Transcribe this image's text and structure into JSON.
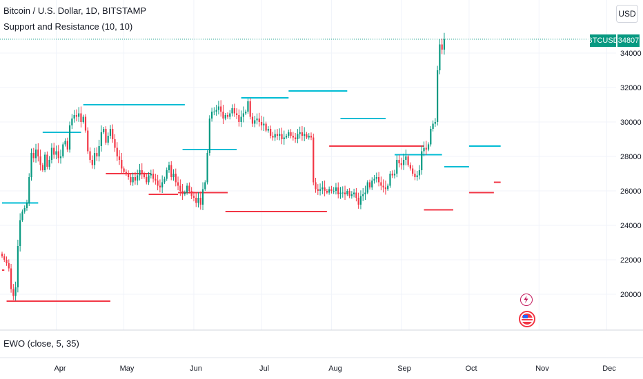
{
  "header": {
    "title": "Bitcoin / U.S. Dollar, 1D, BITSTAMP",
    "indicator": "Support and Resistance (10, 10)",
    "currency": "USD"
  },
  "price_axis": {
    "symbol_label": "BTCUSD",
    "last_price": "34807",
    "ticks": [
      "34000",
      "32000",
      "30000",
      "28000",
      "26000",
      "24000",
      "22000",
      "20000"
    ]
  },
  "time_axis": {
    "ticks": [
      "Apr",
      "May",
      "Jun",
      "Jul",
      "Aug",
      "Sep",
      "Oct",
      "Nov",
      "Dec"
    ]
  },
  "sub_pane": {
    "label": "EWO (close, 5, 35)"
  },
  "events": {
    "flash_icon": "lightning-icon",
    "flag_icon": "us-flag-icon"
  },
  "colors": {
    "up": "#089981",
    "down": "#f23645",
    "resistance": "#00bcd4",
    "support": "#f23645"
  },
  "chart_data": {
    "type": "candlestick",
    "symbol": "BTCUSD",
    "ylim": [
      18500,
      35500
    ],
    "start_date": "2023-03-08",
    "closes": [
      22200,
      22000,
      21800,
      21500,
      20300,
      19900,
      20400,
      22800,
      24300,
      24800,
      25000,
      25300,
      26800,
      28200,
      27900,
      28400,
      28000,
      27500,
      27200,
      28100,
      27400,
      27800,
      28500,
      28100,
      28300,
      27900,
      28000,
      28700,
      28900,
      28400,
      29800,
      30200,
      30400,
      30300,
      30500,
      30000,
      30300,
      29500,
      28300,
      27800,
      27500,
      28200,
      28000,
      28600,
      29400,
      29600,
      28800,
      29200,
      29600,
      29000,
      28500,
      28000,
      27800,
      27300,
      27100,
      27000,
      26800,
      26500,
      26800,
      26600,
      26900,
      27200,
      27000,
      26800,
      26500,
      26900,
      27000,
      26700,
      26600,
      26300,
      26200,
      26500,
      26700,
      27200,
      27500,
      26800,
      27000,
      26500,
      26300,
      26000,
      25800,
      25900,
      26300,
      26000,
      25700,
      25600,
      25300,
      25600,
      25200,
      26100,
      26500,
      28200,
      30200,
      30600,
      30600,
      30700,
      30900,
      30600,
      30200,
      30400,
      30300,
      30500,
      30800,
      30500,
      30400,
      30000,
      30300,
      30500,
      30600,
      31200,
      30300,
      29900,
      30100,
      30200,
      30000,
      29800,
      29900,
      29500,
      29600,
      29200,
      29100,
      29300,
      29200,
      29300,
      29000,
      29100,
      29200,
      29400,
      29200,
      29100,
      29000,
      29300,
      29400,
      29200,
      29300,
      29100,
      29200,
      29100,
      26500,
      26100,
      26000,
      26100,
      26200,
      26000,
      25900,
      26100,
      26000,
      26000,
      26200,
      25800,
      25900,
      25900,
      25800,
      26000,
      25700,
      25800,
      25900,
      25600,
      25200,
      25700,
      25800,
      25900,
      26500,
      26200,
      26600,
      26700,
      26800,
      26500,
      26300,
      26200,
      26100,
      26300,
      27000,
      26900,
      27000,
      27800,
      27600,
      27500,
      27800,
      28000,
      27500,
      27300,
      27000,
      26800,
      26900,
      27200,
      28300,
      28500,
      28400,
      28700,
      29600,
      29900,
      30000,
      33000,
      34500,
      34200,
      34807
    ],
    "resistance_levels": [
      {
        "value": 25300,
        "from": "2023-03-08",
        "to": "2023-03-24"
      },
      {
        "value": 29400,
        "from": "2023-03-26",
        "to": "2023-04-12"
      },
      {
        "value": 31000,
        "from": "2023-04-13",
        "to": "2023-05-28"
      },
      {
        "value": 28400,
        "from": "2023-05-27",
        "to": "2023-06-20"
      },
      {
        "value": 31400,
        "from": "2023-06-22",
        "to": "2023-07-13"
      },
      {
        "value": 31800,
        "from": "2023-07-13",
        "to": "2023-08-08"
      },
      {
        "value": 30200,
        "from": "2023-08-05",
        "to": "2023-08-25"
      },
      {
        "value": 28100,
        "from": "2023-08-29",
        "to": "2023-09-19"
      },
      {
        "value": 27400,
        "from": "2023-09-20",
        "to": "2023-10-01"
      },
      {
        "value": 28600,
        "from": "2023-10-01",
        "to": "2023-10-15"
      }
    ],
    "support_levels": [
      {
        "value": 21400,
        "from": "2023-03-08",
        "to": "2023-03-09"
      },
      {
        "value": 19600,
        "from": "2023-03-10",
        "to": "2023-04-25"
      },
      {
        "value": 27000,
        "from": "2023-04-23",
        "to": "2023-05-13"
      },
      {
        "value": 25800,
        "from": "2023-05-12",
        "to": "2023-05-25"
      },
      {
        "value": 25900,
        "from": "2023-05-25",
        "to": "2023-06-16"
      },
      {
        "value": 24800,
        "from": "2023-06-15",
        "to": "2023-07-30"
      },
      {
        "value": 28600,
        "from": "2023-07-31",
        "to": "2023-09-11"
      },
      {
        "value": 24900,
        "from": "2023-09-11",
        "to": "2023-09-24"
      },
      {
        "value": 25900,
        "from": "2023-10-01",
        "to": "2023-10-12"
      },
      {
        "value": 26500,
        "from": "2023-10-12",
        "to": "2023-10-15"
      }
    ]
  }
}
